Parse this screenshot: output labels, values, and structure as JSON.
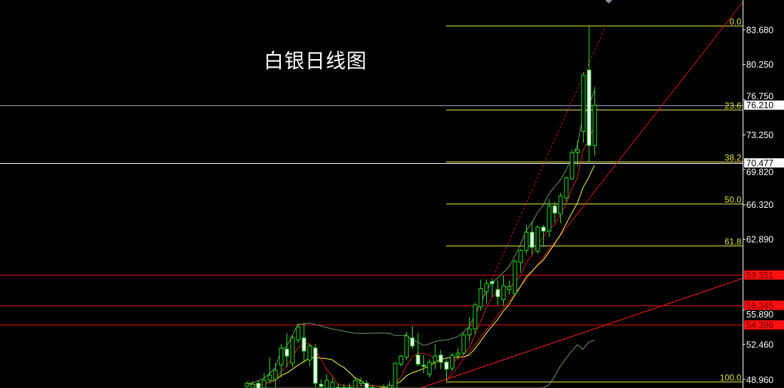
{
  "title": "白银日线图",
  "colors": {
    "background": "#000000",
    "up_candle": "#22e022",
    "down_candle_fill": "#ffffff",
    "fib_lines": "#e8e840",
    "resistance_lines": "#e01010",
    "bollinger": "#6f9a6f",
    "ma_fast": "#d02020",
    "ma_slow": "#ffff40",
    "axis": "#ffffff"
  },
  "chart_data": {
    "type": "candlestick",
    "title": "白银日线图",
    "y_axis": {
      "position": "right",
      "tick_labels": [
        "83.680",
        "80.250",
        "76.750",
        "73.250",
        "69.820",
        "66.320",
        "62.890",
        "55.890",
        "52.460",
        "48.960"
      ],
      "visible_range": [
        47.6,
        86.6
      ]
    },
    "ohlc": [
      [
        48.3,
        48.8,
        48.1,
        48.6
      ],
      [
        48.1,
        48.8,
        48.0,
        48.5
      ],
      [
        48.6,
        48.9,
        47.9,
        48.1
      ],
      [
        48.1,
        49.6,
        47.9,
        48.9
      ],
      [
        48.9,
        51.2,
        48.6,
        49.4
      ],
      [
        49.0,
        50.6,
        48.2,
        49.9
      ],
      [
        50.4,
        52.5,
        49.2,
        52.1
      ],
      [
        52.0,
        53.6,
        50.2,
        51.3
      ],
      [
        50.6,
        53.4,
        50.2,
        53.1
      ],
      [
        52.9,
        54.5,
        52.6,
        54.2
      ],
      [
        53.1,
        54.6,
        50.6,
        51.8
      ],
      [
        50.9,
        52.5,
        50.3,
        52.3
      ],
      [
        52.1,
        52.5,
        48.2,
        48.6
      ],
      [
        48.5,
        49.0,
        47.9,
        48.3
      ],
      [
        47.9,
        49.5,
        47.7,
        48.9
      ],
      [
        47.9,
        49.2,
        47.7,
        48.7
      ],
      [
        48.2,
        48.6,
        47.6,
        47.9
      ],
      [
        47.9,
        48.5,
        47.7,
        48.2
      ],
      [
        48.2,
        48.6,
        47.7,
        48.0
      ],
      [
        47.9,
        49.1,
        47.7,
        48.9
      ],
      [
        48.6,
        49.2,
        48.3,
        48.8
      ],
      [
        48.6,
        48.9,
        47.6,
        47.9
      ],
      [
        48.0,
        48.4,
        47.7,
        48.2
      ],
      [
        47.6,
        48.1,
        47.3,
        47.8
      ],
      [
        47.5,
        48.5,
        47.2,
        47.9
      ],
      [
        47.9,
        48.8,
        47.6,
        48.4
      ],
      [
        48.0,
        50.7,
        47.8,
        50.6
      ],
      [
        50.5,
        51.4,
        50.3,
        51.3
      ],
      [
        51.2,
        53.7,
        50.9,
        53.3
      ],
      [
        53.1,
        54.3,
        52.0,
        52.3
      ],
      [
        51.4,
        53.6,
        50.3,
        50.5
      ],
      [
        50.4,
        51.4,
        49.6,
        50.3
      ],
      [
        49.5,
        51.0,
        49.2,
        50.7
      ],
      [
        50.7,
        52.5,
        50.0,
        51.3
      ],
      [
        51.4,
        51.9,
        50.0,
        50.7
      ],
      [
        50.7,
        51.0,
        48.8,
        50.0
      ],
      [
        50.1,
        51.6,
        49.8,
        51.4
      ],
      [
        51.4,
        52.1,
        51.0,
        51.6
      ],
      [
        51.6,
        53.6,
        51.4,
        53.4
      ],
      [
        53.4,
        55.2,
        52.7,
        54.0
      ],
      [
        54.0,
        56.6,
        53.5,
        56.4
      ],
      [
        56.2,
        58.9,
        55.8,
        58.0
      ],
      [
        57.7,
        58.9,
        56.5,
        58.5
      ],
      [
        58.7,
        59.0,
        57.2,
        58.5
      ],
      [
        57.9,
        58.8,
        56.4,
        57.2
      ],
      [
        56.9,
        59.3,
        56.3,
        58.3
      ],
      [
        57.9,
        58.8,
        57.4,
        58.2
      ],
      [
        57.5,
        60.9,
        57.3,
        60.7
      ],
      [
        60.6,
        61.9,
        59.6,
        61.8
      ],
      [
        61.8,
        64.3,
        61.4,
        63.6
      ],
      [
        63.6,
        64.7,
        61.4,
        62.1
      ],
      [
        61.7,
        64.3,
        61.5,
        64.1
      ],
      [
        64.1,
        64.3,
        62.2,
        63.7
      ],
      [
        63.7,
        66.9,
        63.1,
        66.2
      ],
      [
        66.2,
        66.6,
        64.6,
        65.5
      ],
      [
        65.4,
        67.5,
        64.5,
        67.2
      ],
      [
        67.0,
        69.1,
        66.6,
        69.0
      ],
      [
        68.9,
        71.8,
        68.8,
        71.5
      ],
      [
        71.5,
        72.7,
        70.2,
        71.8
      ],
      [
        73.6,
        79.5,
        72.5,
        79.2
      ],
      [
        79.7,
        84.0,
        70.6,
        72.2
      ],
      [
        72.2,
        78.0,
        71.2,
        76.2
      ]
    ],
    "ohlc_fields": [
      "open",
      "high",
      "low",
      "close"
    ],
    "fibonacci": {
      "high": 84.1,
      "low": 48.77,
      "levels": [
        {
          "ratio": 0.0,
          "label": "0.0"
        },
        {
          "ratio": 0.236,
          "label": "23.6"
        },
        {
          "ratio": 0.382,
          "label": "38.2"
        },
        {
          "ratio": 0.5,
          "label": "50.0"
        },
        {
          "ratio": 0.618,
          "label": "61.8"
        },
        {
          "ratio": 1.0,
          "label": "100.0"
        }
      ]
    },
    "horizontal_lines": [
      {
        "price": 76.21,
        "label": "76.210",
        "style": "current-price",
        "color": "#a0a8b8"
      },
      {
        "price": 70.477,
        "label": "70.477",
        "style": "white",
        "color": "#ffffff"
      },
      {
        "price": 59.351,
        "label": "59.351",
        "style": "red",
        "color": "#e01010"
      },
      {
        "price": 56.345,
        "label": "56.345",
        "style": "red",
        "color": "#e01010"
      },
      {
        "price": 54.396,
        "label": "54.396",
        "style": "red",
        "color": "#e01010"
      }
    ]
  }
}
